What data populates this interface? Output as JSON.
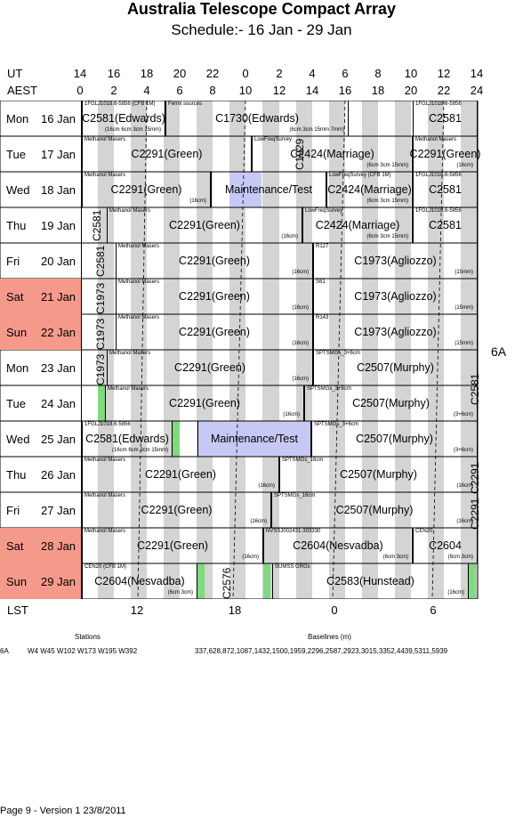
{
  "title": "Australia Telescope Compact Array",
  "subtitle": "Schedule:- 16 Jan - 29 Jan",
  "time_axes": {
    "ut_label": "UT",
    "aest_label": "AEST",
    "lst_label": "LST",
    "ut_ticks": [
      "14",
      "16",
      "18",
      "20",
      "22",
      "0",
      "2",
      "4",
      "6",
      "8",
      "10",
      "12",
      "14"
    ],
    "aest_ticks": [
      "0",
      "2",
      "4",
      "6",
      "8",
      "10",
      "12",
      "14",
      "16",
      "18",
      "20",
      "22",
      "24"
    ],
    "lst_ticks": [
      "12",
      "18",
      "0",
      "6"
    ]
  },
  "days": [
    {
      "name": "Mon",
      "date": "16 Jan",
      "weekend": false
    },
    {
      "name": "Tue",
      "date": "17 Jan",
      "weekend": false
    },
    {
      "name": "Wed",
      "date": "18 Jan",
      "weekend": false
    },
    {
      "name": "Thu",
      "date": "19 Jan",
      "weekend": false
    },
    {
      "name": "Fri",
      "date": "20 Jan",
      "weekend": false
    },
    {
      "name": "Sat",
      "date": "21 Jan",
      "weekend": true
    },
    {
      "name": "Sun",
      "date": "22 Jan",
      "weekend": true
    },
    {
      "name": "Mon",
      "date": "23 Jan",
      "weekend": false
    },
    {
      "name": "Tue",
      "date": "24 Jan",
      "weekend": false
    },
    {
      "name": "Wed",
      "date": "25 Jan",
      "weekend": false
    },
    {
      "name": "Thu",
      "date": "26 Jan",
      "weekend": false
    },
    {
      "name": "Fri",
      "date": "27 Jan",
      "weekend": false
    },
    {
      "name": "Sat",
      "date": "28 Jan",
      "weekend": true
    },
    {
      "name": "Sun",
      "date": "29 Jan",
      "weekend": true
    }
  ],
  "array_config": "6A",
  "events": [
    {
      "row": 0,
      "name": "C2581(Edwards)",
      "top": "1FGLJ1018.6-5856 (CFB 1M)",
      "bot": "(16cm 6cm 3cm 15mm)"
    },
    {
      "row": 0,
      "name": "C1730(Edwards)",
      "top": "Fermi sources",
      "bot": "(6cm 3cm 15mm 7mm)"
    },
    {
      "row": 0,
      "name": "C2581",
      "top": "1FGLJ1018.6-5856",
      "bot": ""
    },
    {
      "row": 1,
      "name": "C2291(Green)",
      "top": "Methanol Masers",
      "bot": ""
    },
    {
      "row": 1,
      "name": "C2424(Marriage)",
      "top": "LowFreqSurvey",
      "bot": "(6cm 3cm 15mm)"
    },
    {
      "row": 1,
      "name": "C2291(Green)",
      "top": "Methanol Masers",
      "bot": "(16cm)"
    },
    {
      "row": 2,
      "name": "C2291(Green)",
      "top": "Methanol Masers",
      "bot": "(16cm)"
    },
    {
      "row": 2,
      "name": "Maintenance/Test",
      "top": "",
      "bot": ""
    },
    {
      "row": 2,
      "name": "C2424(Marriage)",
      "top": "LowFreqSurvey (CFB 1M)",
      "bot": "(6cm 3cm 15mm)"
    },
    {
      "row": 2,
      "name": "C2581",
      "top": "1FGLJ1018.6-5856",
      "bot": ""
    },
    {
      "row": 3,
      "name": "C2291(Green)",
      "top": "Methanol Masers",
      "bot": "(16cm)"
    },
    {
      "row": 3,
      "name": "C2424(Marriage)",
      "top": "LowFreqSurvey",
      "bot": "(6cm 3cm 15mm)"
    },
    {
      "row": 3,
      "name": "C2581",
      "top": "1FGLJ1018.6-5856",
      "bot": ""
    },
    {
      "row": 4,
      "name": "C2291(Green)",
      "top": "Methanol Masers",
      "bot": "(16cm)"
    },
    {
      "row": 4,
      "name": "C1973(Agliozzo)",
      "top": "R127",
      "bot": "(15mm)"
    },
    {
      "row": 5,
      "name": "C2291(Green)",
      "top": "Methanol Masers",
      "bot": "(16cm)"
    },
    {
      "row": 5,
      "name": "C1973(Agliozzo)",
      "top": "S61",
      "bot": "(15mm)"
    },
    {
      "row": 6,
      "name": "C2291(Green)",
      "top": "Methanol Masers",
      "bot": "(16cm)"
    },
    {
      "row": 6,
      "name": "C1973(Agliozzo)",
      "top": "R143",
      "bot": "(15mm)"
    },
    {
      "row": 7,
      "name": "C2291(Green)",
      "top": "Methanol Masers",
      "bot": "(16cm)"
    },
    {
      "row": 7,
      "name": "C2507(Murphy)",
      "top": "SPTSMGs_3+6cm",
      "bot": ""
    },
    {
      "row": 8,
      "name": "C2291(Green)",
      "top": "Methanol Masers",
      "bot": "(16cm)"
    },
    {
      "row": 8,
      "name": "C2507(Murphy)",
      "top": "SPTSMGs_3+6cm",
      "bot": "(3+6cm)"
    },
    {
      "row": 9,
      "name": "C2581(Edwards)",
      "top": "1FGLJ1018.6-5856",
      "bot": "(16cm 6cm 3cm 15mm)"
    },
    {
      "row": 9,
      "name": "Maintenance/Test",
      "top": "",
      "bot": ""
    },
    {
      "row": 9,
      "name": "C2507(Murphy)",
      "top": "SPTSMGs_3+6cm",
      "bot": "(3+6cm)"
    },
    {
      "row": 10,
      "name": "C2291(Green)",
      "top": "Methanol Masers",
      "bot": "(16cm)"
    },
    {
      "row": 10,
      "name": "C2507(Murphy)",
      "top": "SPTSMGs_16cm",
      "bot": "(16cm)"
    },
    {
      "row": 11,
      "name": "C2291(Green)",
      "top": "Methanol Masers",
      "bot": "(16cm)"
    },
    {
      "row": 11,
      "name": "C2507(Murphy)",
      "top": "SPTSMGs_16cm",
      "bot": "(16cm)"
    },
    {
      "row": 12,
      "name": "C2291(Green)",
      "top": "Methanol Masers",
      "bot": "(16cm)"
    },
    {
      "row": 12,
      "name": "C2604(Nesvadba)",
      "top": "NVSSJ002431-303330",
      "bot": "(6cm 3cm)"
    },
    {
      "row": 12,
      "name": "C2604",
      "top": "CEN20",
      "bot": "(6cm 3cm)"
    },
    {
      "row": 13,
      "name": "C2604(Nesvadba)",
      "top": "CEN20 (CFB 1M)",
      "bot": "(6cm 3cm)"
    },
    {
      "row": 13,
      "name": "C2583(Hunstead)",
      "top": "SUMSS GRGs",
      "bot": "(16cm)"
    }
  ],
  "vertical_labels": [
    "C1929",
    "C2581",
    "C2581",
    "C1973",
    "C1973",
    "C1973",
    "C2581",
    "C2291",
    "C2291",
    "C2576"
  ],
  "stations": {
    "label": "Stations",
    "config": "6A",
    "value": "W4 W45 W102 W173 W195 W392"
  },
  "baselines": {
    "label": "Baselines (m)",
    "value": "337,628,872,1087,1432,1500,1959,2296,2587,2923,3015,3352,4439,5311,5939"
  },
  "footer": "Page 9 - Version 1  23/8/2011"
}
